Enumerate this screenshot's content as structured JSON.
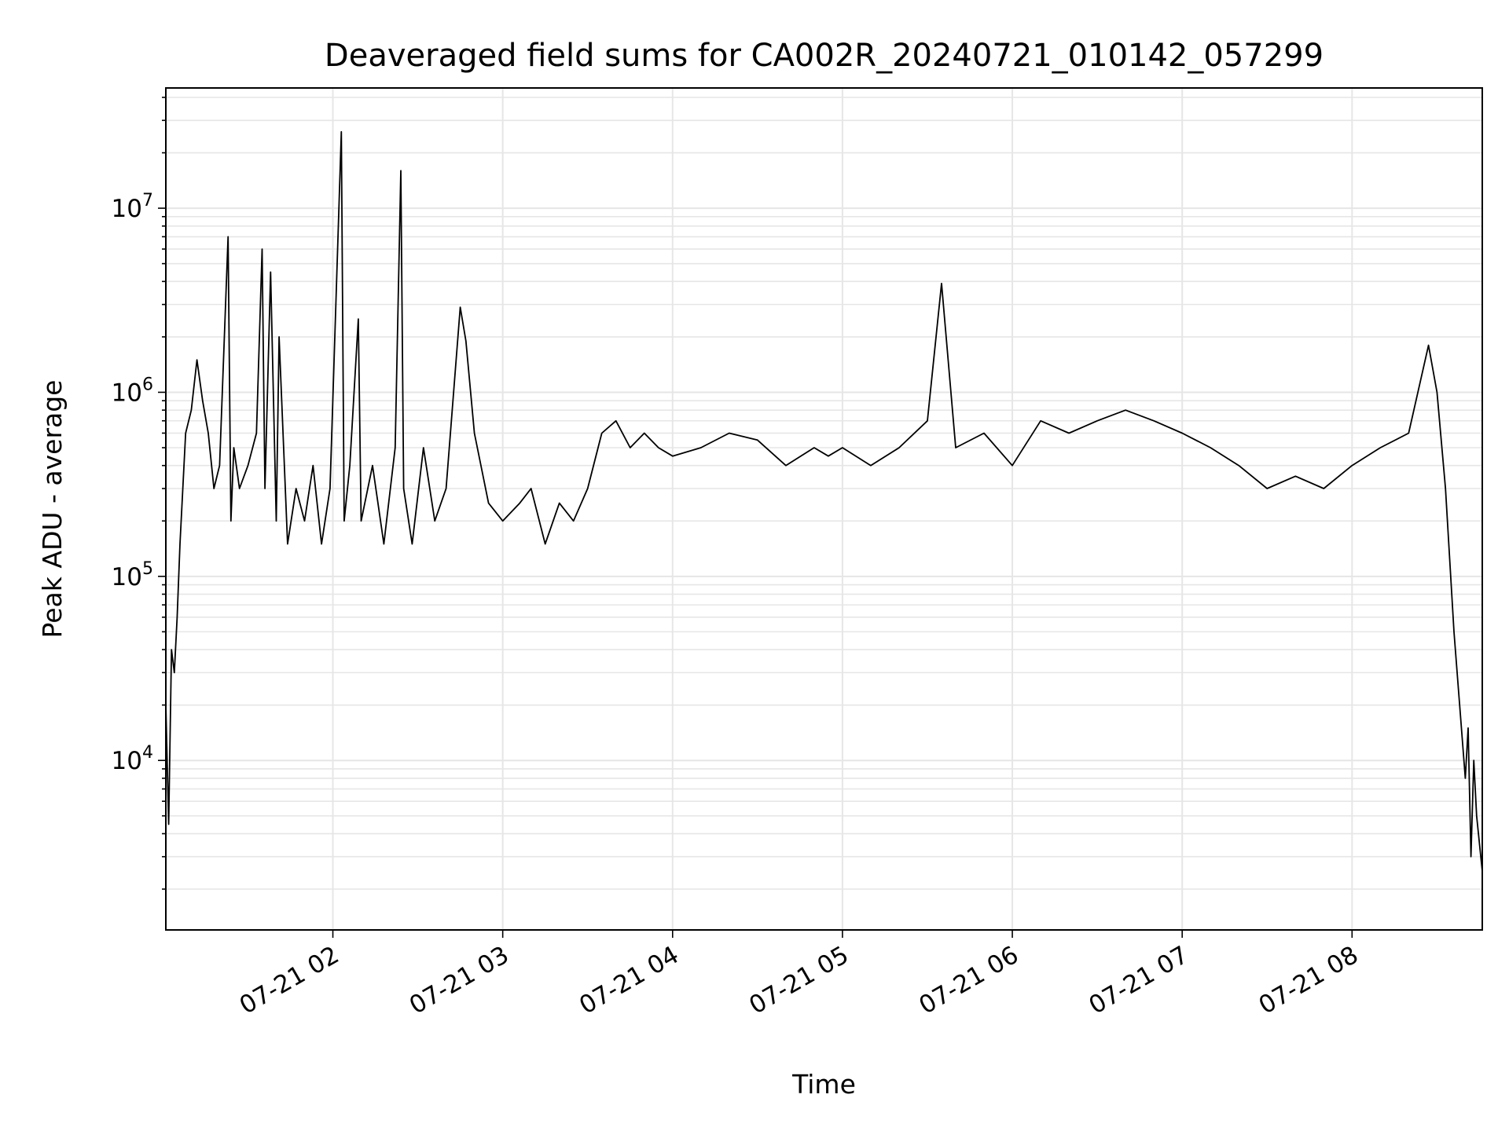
{
  "chart_data": {
    "type": "line",
    "title": "Deaveraged field sums for CA002R_20240721_010142_057299",
    "xlabel": "Time",
    "ylabel": "Peak ADU - average",
    "x_range": [
      "2024-07-21 01:01",
      "2024-07-21 08:46"
    ],
    "x_ticks": [
      {
        "value": "2024-07-21 02:00",
        "label": "07-21 02"
      },
      {
        "value": "2024-07-21 03:00",
        "label": "07-21 03"
      },
      {
        "value": "2024-07-21 04:00",
        "label": "07-21 04"
      },
      {
        "value": "2024-07-21 05:00",
        "label": "07-21 05"
      },
      {
        "value": "2024-07-21 06:00",
        "label": "07-21 06"
      },
      {
        "value": "2024-07-21 07:00",
        "label": "07-21 07"
      },
      {
        "value": "2024-07-21 08:00",
        "label": "07-21 08"
      }
    ],
    "y_scale": "log",
    "y_range": [
      1200,
      45000000
    ],
    "y_ticks": [
      {
        "value": 10000,
        "base": "10",
        "exp": "4"
      },
      {
        "value": 100000,
        "base": "10",
        "exp": "5"
      },
      {
        "value": 1000000,
        "base": "10",
        "exp": "6"
      },
      {
        "value": 10000000,
        "base": "10",
        "exp": "7"
      }
    ],
    "grid": true,
    "line_color": "#000000",
    "grid_color": "#e6e6e6",
    "series": [
      {
        "x": [
          "2024-07-21 01:01",
          "2024-07-21 01:02",
          "2024-07-21 01:03",
          "2024-07-21 01:04",
          "2024-07-21 01:05",
          "2024-07-21 01:06",
          "2024-07-21 01:08",
          "2024-07-21 01:10",
          "2024-07-21 01:12",
          "2024-07-21 01:14",
          "2024-07-21 01:16",
          "2024-07-21 01:18",
          "2024-07-21 01:20",
          "2024-07-21 01:23",
          "2024-07-21 01:24",
          "2024-07-21 01:25",
          "2024-07-21 01:27",
          "2024-07-21 01:30",
          "2024-07-21 01:33",
          "2024-07-21 01:35",
          "2024-07-21 01:36",
          "2024-07-21 01:38",
          "2024-07-21 01:40",
          "2024-07-21 01:41",
          "2024-07-21 01:44",
          "2024-07-21 01:47",
          "2024-07-21 01:50",
          "2024-07-21 01:53",
          "2024-07-21 01:56",
          "2024-07-21 01:59",
          "2024-07-21 02:03",
          "2024-07-21 02:04",
          "2024-07-21 02:06",
          "2024-07-21 02:09",
          "2024-07-21 02:10",
          "2024-07-21 02:14",
          "2024-07-21 02:18",
          "2024-07-21 02:22",
          "2024-07-21 02:24",
          "2024-07-21 02:25",
          "2024-07-21 02:28",
          "2024-07-21 02:32",
          "2024-07-21 02:36",
          "2024-07-21 02:40",
          "2024-07-21 02:45",
          "2024-07-21 02:47",
          "2024-07-21 02:50",
          "2024-07-21 02:55",
          "2024-07-21 03:00",
          "2024-07-21 03:06",
          "2024-07-21 03:10",
          "2024-07-21 03:15",
          "2024-07-21 03:20",
          "2024-07-21 03:25",
          "2024-07-21 03:30",
          "2024-07-21 03:35",
          "2024-07-21 03:40",
          "2024-07-21 03:45",
          "2024-07-21 03:50",
          "2024-07-21 03:55",
          "2024-07-21 04:00",
          "2024-07-21 04:10",
          "2024-07-21 04:20",
          "2024-07-21 04:30",
          "2024-07-21 04:40",
          "2024-07-21 04:50",
          "2024-07-21 04:55",
          "2024-07-21 05:00",
          "2024-07-21 05:10",
          "2024-07-21 05:20",
          "2024-07-21 05:30",
          "2024-07-21 05:35",
          "2024-07-21 05:40",
          "2024-07-21 05:50",
          "2024-07-21 06:00",
          "2024-07-21 06:10",
          "2024-07-21 06:20",
          "2024-07-21 06:30",
          "2024-07-21 06:40",
          "2024-07-21 06:50",
          "2024-07-21 07:00",
          "2024-07-21 07:10",
          "2024-07-21 07:20",
          "2024-07-21 07:30",
          "2024-07-21 07:40",
          "2024-07-21 07:50",
          "2024-07-21 08:00",
          "2024-07-21 08:10",
          "2024-07-21 08:20",
          "2024-07-21 08:27",
          "2024-07-21 08:30",
          "2024-07-21 08:33",
          "2024-07-21 08:36",
          "2024-07-21 08:38",
          "2024-07-21 08:40",
          "2024-07-21 08:41",
          "2024-07-21 08:42",
          "2024-07-21 08:43",
          "2024-07-21 08:44",
          "2024-07-21 08:46"
        ],
        "y": [
          20000,
          4500,
          40000,
          30000,
          60000,
          150000,
          600000,
          800000,
          1500000,
          900000,
          600000,
          300000,
          400000,
          7000000,
          200000,
          500000,
          300000,
          400000,
          600000,
          6000000,
          300000,
          4500000,
          200000,
          2000000,
          150000,
          300000,
          200000,
          400000,
          150000,
          300000,
          26000000,
          200000,
          400000,
          2500000,
          200000,
          400000,
          150000,
          500000,
          16000000,
          300000,
          150000,
          500000,
          200000,
          300000,
          2900000,
          1900000,
          600000,
          250000,
          200000,
          250000,
          300000,
          150000,
          250000,
          200000,
          300000,
          600000,
          700000,
          500000,
          600000,
          500000,
          450000,
          500000,
          600000,
          550000,
          400000,
          500000,
          450000,
          500000,
          400000,
          500000,
          700000,
          3900000,
          500000,
          600000,
          400000,
          700000,
          600000,
          700000,
          800000,
          700000,
          600000,
          500000,
          400000,
          300000,
          350000,
          300000,
          400000,
          500000,
          600000,
          1800000,
          1000000,
          300000,
          50000,
          20000,
          8000,
          15000,
          3000,
          10000,
          5000,
          2500
        ]
      }
    ]
  }
}
